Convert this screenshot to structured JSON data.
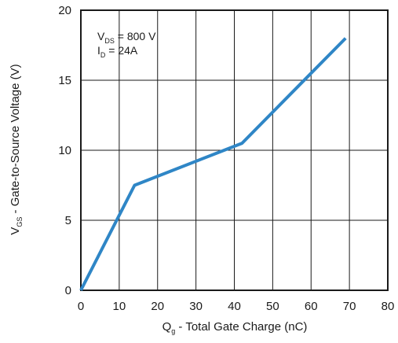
{
  "chart_data": {
    "type": "line",
    "xlabel": "Q",
    "xlabel_sub": "g",
    "xlabel_rest": " - Total Gate Charge (nC)",
    "ylabel": "V",
    "ylabel_sub": "GS",
    "ylabel_rest": " - Gate-to-Source Voltage (V)",
    "xlim": [
      0,
      80
    ],
    "ylim": [
      0,
      20
    ],
    "x_ticks": [
      0,
      10,
      20,
      30,
      40,
      50,
      60,
      70,
      80
    ],
    "y_ticks": [
      0,
      5,
      10,
      15,
      20
    ],
    "grid": true,
    "series": [
      {
        "color": "#2f86c6",
        "x": [
          0,
          14,
          42,
          69
        ],
        "y": [
          0,
          7.5,
          10.5,
          18
        ]
      }
    ],
    "annotations": [
      {
        "main": "V",
        "sub": "DS",
        "rest": " = 800 V"
      },
      {
        "main": "I",
        "sub": "D",
        "rest": " = 24A"
      }
    ]
  }
}
